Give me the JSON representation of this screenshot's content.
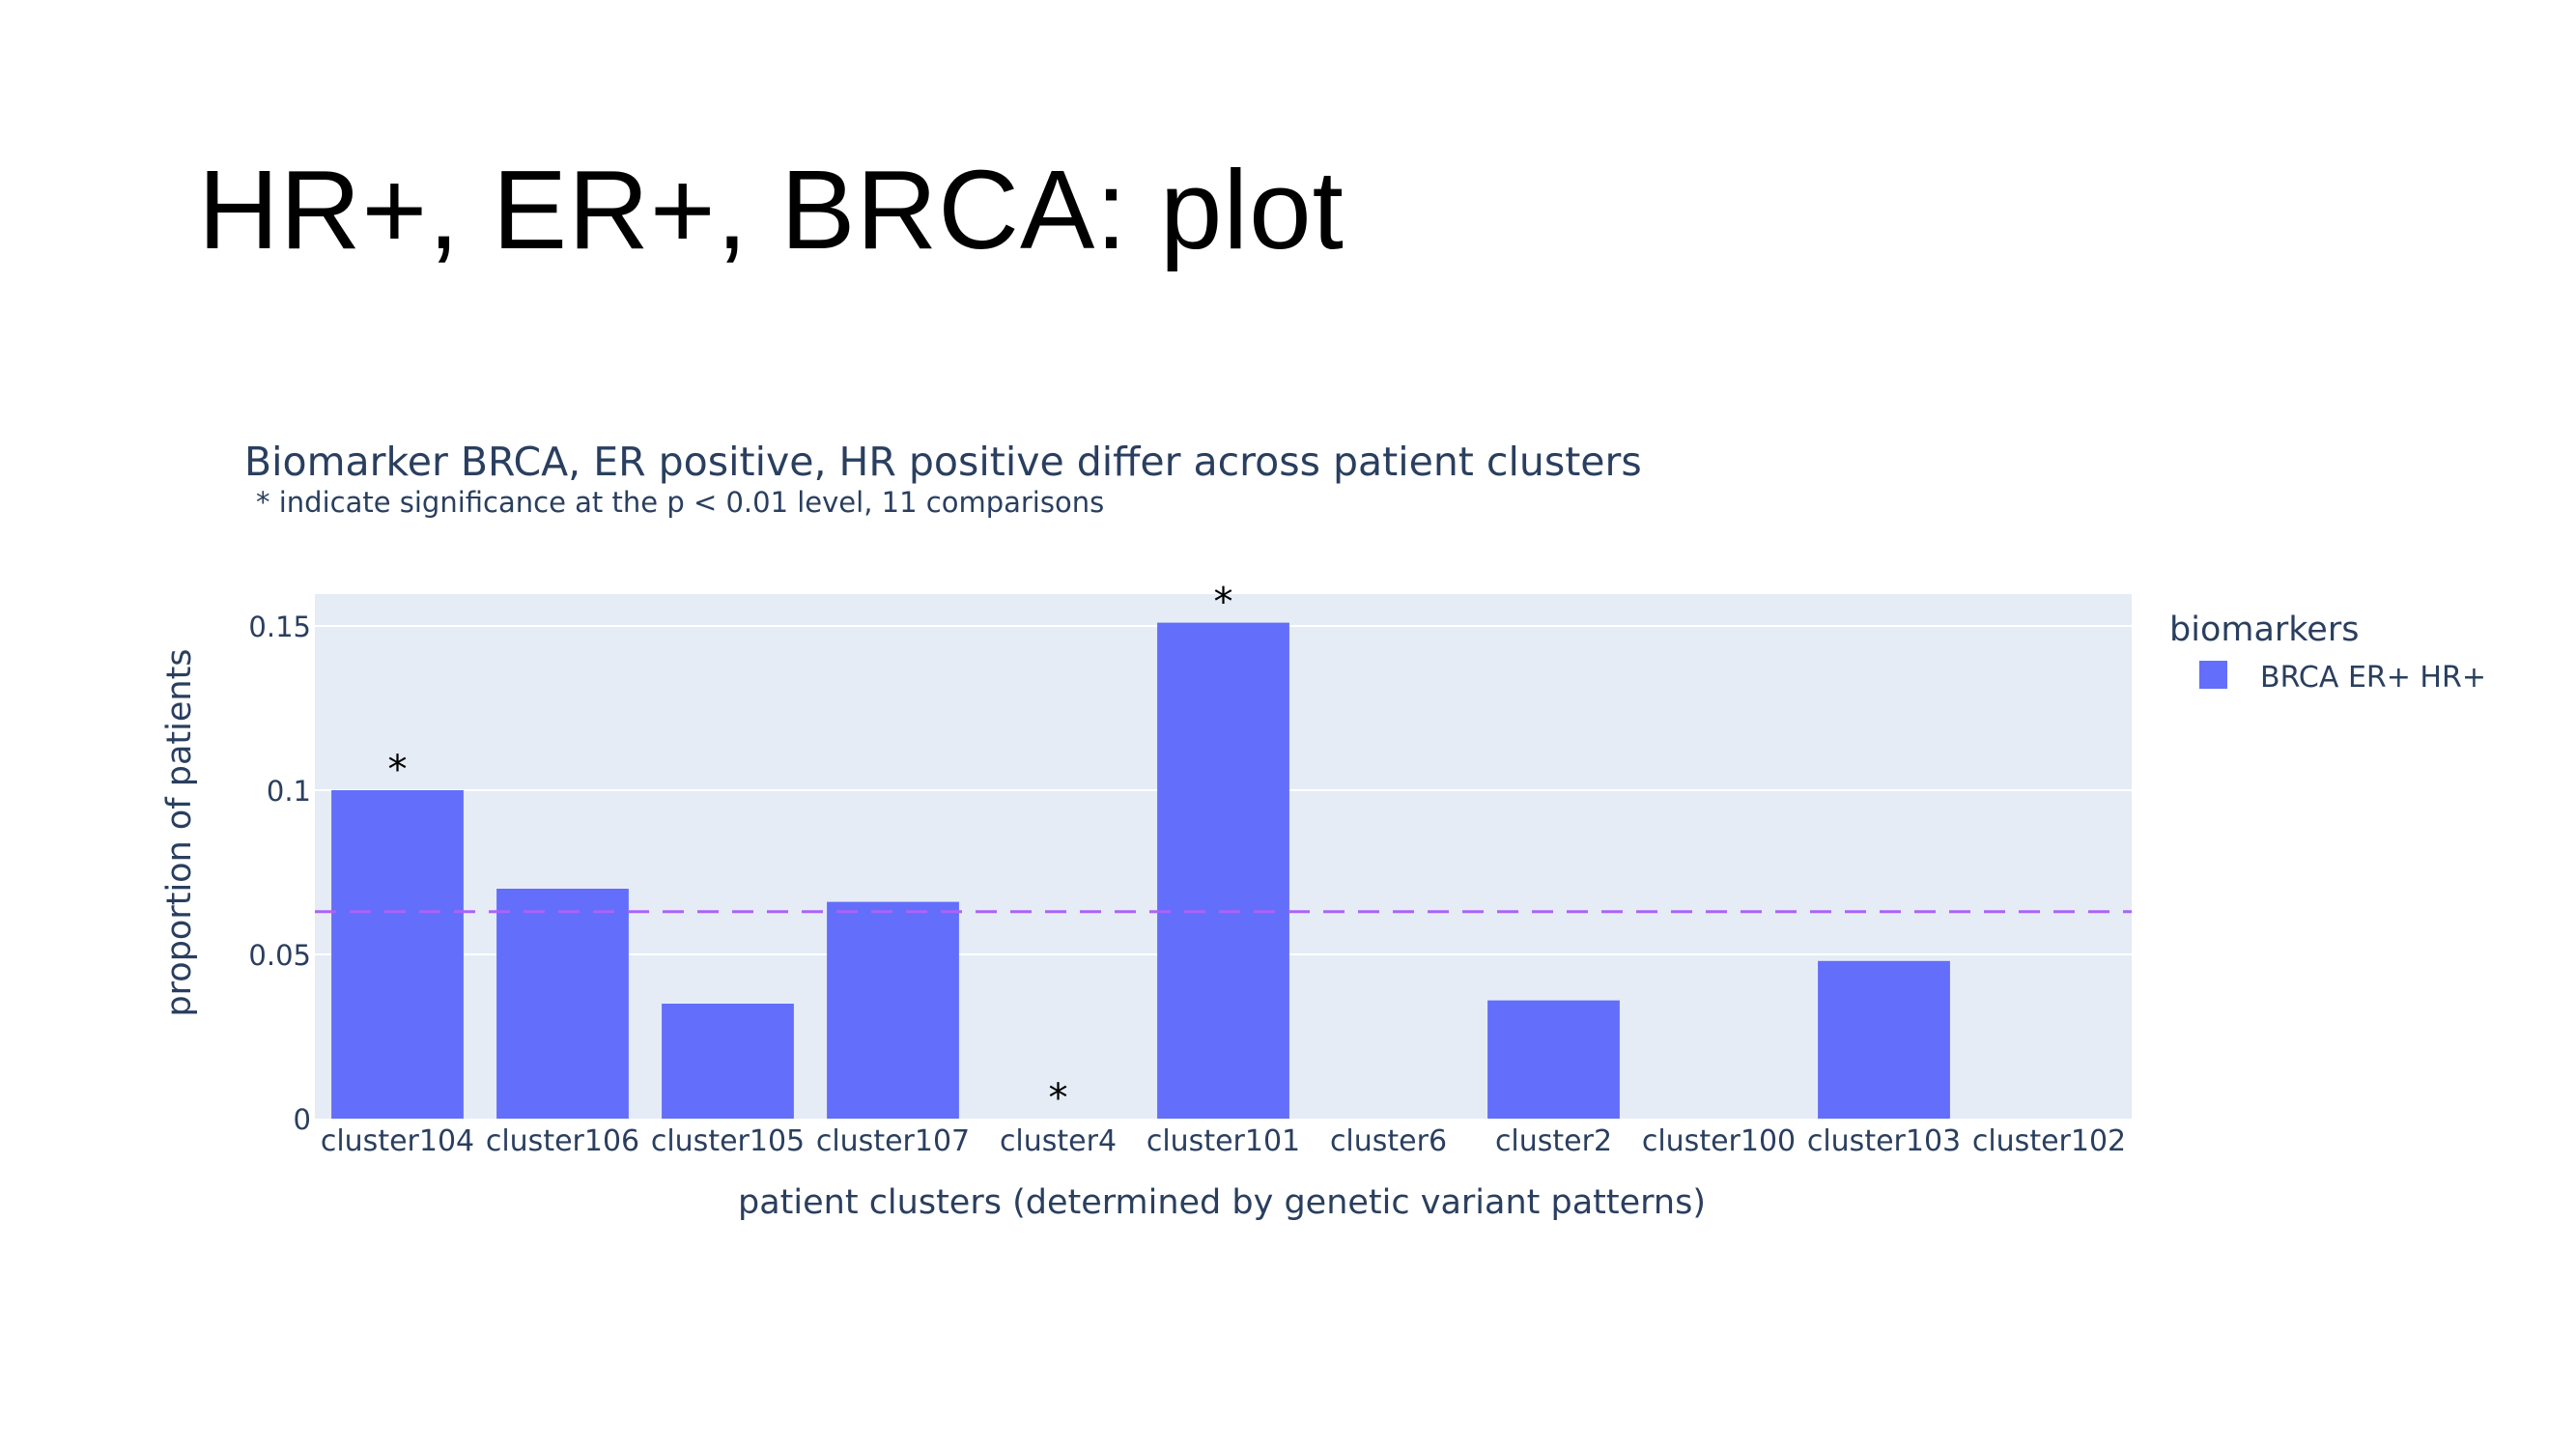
{
  "slide": {
    "title": "HR+, ER+, BRCA: plot"
  },
  "colors": {
    "bar": "#636efa",
    "plot_bg": "#e5ecf6",
    "grid": "#ffffff",
    "reference_line": "#ab63fa",
    "text": "#2a3f5f"
  },
  "chart_data": {
    "type": "bar",
    "title": "Biomarker BRCA, ER positive, HR positive differ across patient clusters",
    "subtitle": "* indicate significance at the p < 0.01 level, 11 comparisons",
    "xlabel": "patient clusters (determined by genetic variant patterns)",
    "ylabel": "proportion of patients",
    "categories": [
      "cluster104",
      "cluster106",
      "cluster105",
      "cluster107",
      "cluster4",
      "cluster101",
      "cluster6",
      "cluster2",
      "cluster100",
      "cluster103",
      "cluster102"
    ],
    "series": [
      {
        "name": "BRCA ER+ HR+",
        "values": [
          0.1,
          0.07,
          0.035,
          0.066,
          0.0,
          0.151,
          0.0,
          0.036,
          0.0,
          0.048,
          0.0
        ]
      }
    ],
    "significant": [
      true,
      false,
      false,
      false,
      true,
      true,
      false,
      false,
      false,
      false,
      false
    ],
    "significance_marker": "*",
    "reference_line": {
      "y": 0.063,
      "style": "dashed"
    },
    "ylim": [
      0,
      0.16
    ],
    "yticks": [
      0,
      0.05,
      0.1,
      0.15
    ],
    "ytick_labels": [
      "0",
      "0.05",
      "0.1",
      "0.15"
    ],
    "grid": true,
    "legend": {
      "title": "biomarkers",
      "position": "right",
      "entries": [
        "BRCA ER+ HR+"
      ]
    }
  }
}
